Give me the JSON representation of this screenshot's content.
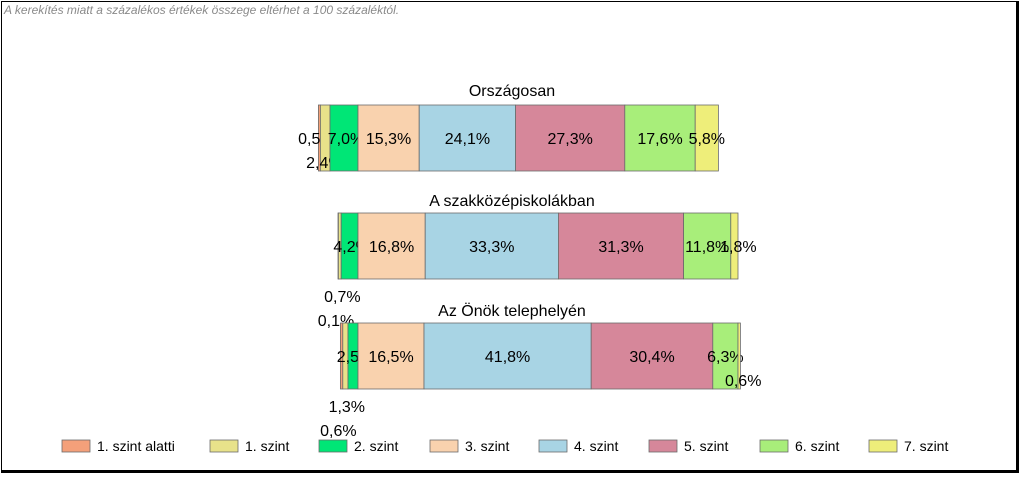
{
  "note": "A kerekítés miatt a  százalékos értékek összege eltérhet a 100 százaléktól.",
  "chart_data": {
    "type": "bar",
    "orientation": "horizontal-stacked",
    "categories": [
      "Országosan",
      "A szakközépiskolákban",
      "Az Önök telephelyén"
    ],
    "series": [
      {
        "name": "1. szint alatti",
        "color": "#F4A07A",
        "values": [
          0.5,
          0.1,
          0.6
        ]
      },
      {
        "name": "1. szint",
        "color": "#E8E28A",
        "values": [
          2.4,
          0.7,
          1.3
        ]
      },
      {
        "name": "2. szint",
        "color": "#00E676",
        "values": [
          7.0,
          4.2,
          2.5
        ]
      },
      {
        "name": "3. szint",
        "color": "#F9D2AE",
        "values": [
          15.3,
          16.8,
          16.5
        ]
      },
      {
        "name": "4. szint",
        "color": "#A8D4E4",
        "values": [
          24.1,
          33.3,
          41.8
        ]
      },
      {
        "name": "5. szint",
        "color": "#D6879A",
        "values": [
          27.3,
          31.3,
          30.4
        ]
      },
      {
        "name": "6. szint",
        "color": "#A8EE7A",
        "values": [
          17.6,
          11.8,
          6.3
        ]
      },
      {
        "name": "7. szint",
        "color": "#EEEE7A",
        "values": [
          5.8,
          1.8,
          0.6
        ]
      }
    ],
    "data_labels": [
      [
        "0,5%",
        "2,4%",
        "7,0%",
        "15,3%",
        "24,1%",
        "27,3%",
        "17,6%",
        "5,8%"
      ],
      [
        "0,1%",
        "0,7%",
        "4,2%",
        "16,8%",
        "33,3%",
        "31,3%",
        "11,8%",
        "1,8%"
      ],
      [
        "0,6%",
        "1,3%",
        "2,5%",
        "16,5%",
        "41,8%",
        "30,4%",
        "6,3%",
        "0,6%"
      ]
    ],
    "legend_position": "bottom",
    "grid": false
  }
}
